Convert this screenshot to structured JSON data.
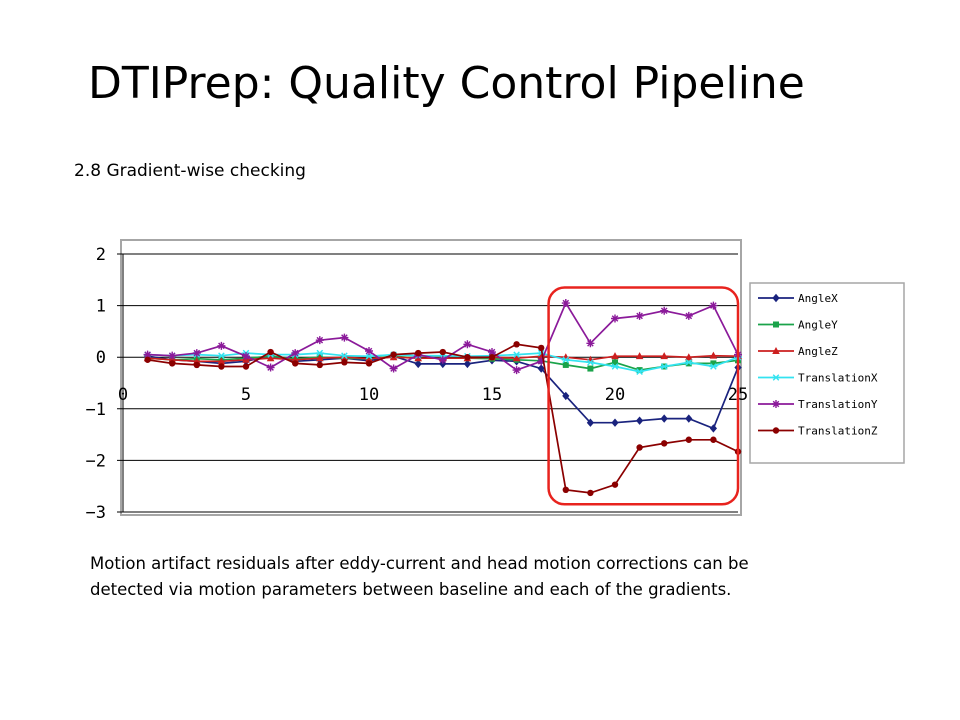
{
  "slide": {
    "title": "DTIPrep: Quality Control Pipeline",
    "subtitle": "2.8 Gradient-wise checking",
    "caption_line1": "Motion artifact residuals after eddy-current and head motion corrections can be",
    "caption_line2": "detected via motion parameters between baseline and each of the gradients."
  },
  "colors": {
    "highlight": "#e8231e",
    "gridline": "#000000",
    "plot_border": "#a6a6a6"
  },
  "chart_data": {
    "type": "line",
    "title": "",
    "xlabel": "",
    "ylabel": "",
    "xlim": [
      0,
      25
    ],
    "ylim": [
      -3,
      2
    ],
    "x_ticks": [
      0,
      5,
      10,
      15,
      20,
      25
    ],
    "x_tick_labels": [
      "0",
      "5",
      "10",
      "15",
      "20",
      "25"
    ],
    "y_ticks": [
      2,
      1,
      0,
      -1,
      -2,
      -3
    ],
    "y_tick_labels": [
      "2",
      "1",
      "0",
      "−1",
      "−2",
      "−3"
    ],
    "grid": "horizontal",
    "legend_position": "right",
    "highlight_range": {
      "x": [
        17.3,
        25
      ],
      "y": [
        -2.85,
        1.35
      ]
    },
    "x": [
      1,
      2,
      3,
      4,
      5,
      6,
      7,
      8,
      9,
      10,
      11,
      12,
      13,
      14,
      15,
      16,
      17,
      18,
      19,
      20,
      21,
      22,
      23,
      24,
      25
    ],
    "series": [
      {
        "name": "AngleX",
        "color": "#1a237e",
        "marker": "diamond",
        "values": [
          0.02,
          -0.05,
          -0.08,
          -0.12,
          -0.08,
          0.03,
          -0.08,
          -0.05,
          -0.02,
          -0.07,
          0.02,
          -0.13,
          -0.13,
          -0.13,
          -0.06,
          -0.08,
          -0.22,
          -0.75,
          -1.27,
          -1.27,
          -1.23,
          -1.19,
          -1.19,
          -1.38,
          -0.2
        ]
      },
      {
        "name": "AngleY",
        "color": "#1aa34a",
        "marker": "square",
        "values": [
          -0.02,
          -0.05,
          -0.03,
          -0.05,
          -0.02,
          0.02,
          -0.03,
          0.0,
          -0.02,
          -0.03,
          0.02,
          -0.02,
          -0.02,
          -0.02,
          -0.03,
          -0.05,
          -0.07,
          -0.15,
          -0.22,
          -0.1,
          -0.25,
          -0.18,
          -0.12,
          -0.12,
          -0.06
        ]
      },
      {
        "name": "AngleZ",
        "color": "#cc1f1f",
        "marker": "triangle",
        "values": [
          -0.02,
          -0.05,
          -0.08,
          -0.08,
          -0.05,
          -0.02,
          -0.05,
          -0.02,
          0.0,
          -0.03,
          0.0,
          -0.02,
          -0.02,
          -0.02,
          0.0,
          -0.02,
          0.02,
          0.0,
          -0.05,
          0.02,
          0.02,
          0.02,
          0.0,
          0.03,
          0.02
        ]
      },
      {
        "name": "TranslationX",
        "color": "#33e3f0",
        "marker": "asterisk",
        "values": [
          0.05,
          0.03,
          0.05,
          0.03,
          0.08,
          0.05,
          0.05,
          0.08,
          0.03,
          0.02,
          0.05,
          0.03,
          0.03,
          0.02,
          0.03,
          0.05,
          0.08,
          -0.05,
          -0.1,
          -0.18,
          -0.28,
          -0.18,
          -0.1,
          -0.18,
          0.0
        ]
      },
      {
        "name": "TranslationY",
        "color": "#8b1a9a",
        "marker": "star",
        "values": [
          0.05,
          0.03,
          0.08,
          0.22,
          0.02,
          -0.2,
          0.08,
          0.33,
          0.38,
          0.12,
          -0.22,
          0.05,
          -0.05,
          0.25,
          0.1,
          -0.25,
          -0.08,
          1.05,
          0.27,
          0.75,
          0.8,
          0.9,
          0.8,
          1.0,
          0.05
        ]
      },
      {
        "name": "TranslationZ",
        "color": "#8b0000",
        "marker": "circle",
        "values": [
          -0.05,
          -0.12,
          -0.15,
          -0.18,
          -0.18,
          0.1,
          -0.12,
          -0.15,
          -0.1,
          -0.12,
          0.05,
          0.08,
          0.1,
          0.0,
          0.0,
          0.25,
          0.18,
          -2.57,
          -2.63,
          -2.47,
          -1.75,
          -1.67,
          -1.6,
          -1.6,
          -1.83
        ]
      }
    ]
  }
}
